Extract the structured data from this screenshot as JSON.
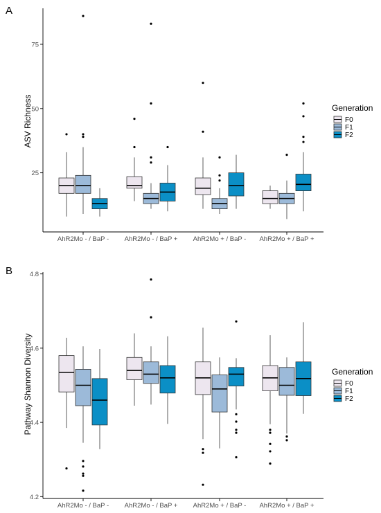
{
  "chart_data": [
    {
      "type": "boxplot",
      "panel_label": "A",
      "title": "",
      "xlabel": "",
      "ylabel": "ASV Richness",
      "ylim": [
        2,
        89
      ],
      "yticks": [
        25,
        50,
        75
      ],
      "ytick_labels": [
        "25",
        "50",
        "75"
      ],
      "categories": [
        "AhR2Mo - / BaP -",
        "AhR2Mo - / BaP +",
        "AhR2Mo + / BaP -",
        "AhR2Mo + / BaP +"
      ],
      "legend": {
        "title": "Generation",
        "entries": [
          "F0",
          "F1",
          "F2"
        ],
        "position": "right"
      },
      "colors": {
        "F0": "#ede6ef",
        "F1": "#9cbad9",
        "F2": "#0b8fc6"
      },
      "series": [
        {
          "name": "F0",
          "boxes": [
            {
              "whisker_low": 8,
              "q1": 17,
              "median": 20,
              "q3": 23,
              "whisker_high": 33,
              "outliers": [
                40
              ]
            },
            {
              "whisker_low": 14,
              "q1": 19,
              "median": 20,
              "q3": 23.5,
              "whisker_high": 31,
              "outliers": [
                35,
                46
              ]
            },
            {
              "whisker_low": 11,
              "q1": 16.5,
              "median": 19,
              "q3": 23,
              "whisker_high": 31,
              "outliers": [
                41,
                60
              ]
            },
            {
              "whisker_low": 11,
              "q1": 13,
              "median": 15,
              "q3": 18,
              "whisker_high": 20,
              "outliers": []
            }
          ]
        },
        {
          "name": "F1",
          "boxes": [
            {
              "whisker_low": 9,
              "q1": 17,
              "median": 20,
              "q3": 24,
              "whisker_high": 35,
              "outliers": [
                39,
                40,
                86
              ]
            },
            {
              "whisker_low": 11,
              "q1": 13,
              "median": 15,
              "q3": 17,
              "whisker_high": 21,
              "outliers": [
                29,
                31,
                52,
                83
              ]
            },
            {
              "whisker_low": 9,
              "q1": 11,
              "median": 13,
              "q3": 15,
              "whisker_high": 19,
              "outliers": [
                22,
                24,
                31
              ]
            },
            {
              "whisker_low": 7,
              "q1": 13,
              "median": 15,
              "q3": 17,
              "whisker_high": 22,
              "outliers": [
                32
              ]
            }
          ]
        },
        {
          "name": "F2",
          "boxes": [
            {
              "whisker_low": 8,
              "q1": 11,
              "median": 13,
              "q3": 15,
              "whisker_high": 19,
              "outliers": []
            },
            {
              "whisker_low": 10,
              "q1": 14,
              "median": 17.5,
              "q3": 21,
              "whisker_high": 28,
              "outliers": [
                35
              ]
            },
            {
              "whisker_low": 11,
              "q1": 16,
              "median": 20,
              "q3": 25,
              "whisker_high": 32,
              "outliers": []
            },
            {
              "whisker_low": 10,
              "q1": 18,
              "median": 20.5,
              "q3": 24.5,
              "whisker_high": 33,
              "outliers": [
                37,
                39,
                47,
                52
              ]
            }
          ]
        }
      ]
    },
    {
      "type": "boxplot",
      "panel_label": "B",
      "title": "",
      "xlabel": "",
      "ylabel": "Pathway Shannon Diversity",
      "ylim": [
        4.195,
        4.805
      ],
      "yticks": [
        4.2,
        4.4,
        4.6,
        4.8
      ],
      "ytick_labels": [
        "4.2",
        "4.4",
        "4.6",
        "4.8"
      ],
      "categories": [
        "AhR2Mo - / BaP -",
        "AhR2Mo - / BaP +",
        "AhR2Mo + / BaP -",
        "AhR2Mo + / BaP +"
      ],
      "legend": {
        "title": "Generation",
        "entries": [
          "F0",
          "F1",
          "F2"
        ],
        "position": "right"
      },
      "colors": {
        "F0": "#ede6ef",
        "F1": "#9cbad9",
        "F2": "#0b8fc6"
      },
      "series": [
        {
          "name": "F0",
          "boxes": [
            {
              "whisker_low": 4.385,
              "q1": 4.482,
              "median": 4.535,
              "q3": 4.58,
              "whisker_high": 4.628,
              "outliers": [
                4.276
              ]
            },
            {
              "whisker_low": 4.445,
              "q1": 4.515,
              "median": 4.54,
              "q3": 4.575,
              "whisker_high": 4.64,
              "outliers": []
            },
            {
              "whisker_low": 4.355,
              "q1": 4.475,
              "median": 4.52,
              "q3": 4.563,
              "whisker_high": 4.655,
              "outliers": [
                4.232,
                4.318,
                4.328
              ]
            },
            {
              "whisker_low": 4.395,
              "q1": 4.485,
              "median": 4.52,
              "q3": 4.553,
              "whisker_high": 4.635,
              "outliers": [
                4.289,
                4.322,
                4.342,
                4.372,
                4.38
              ]
            }
          ]
        },
        {
          "name": "F1",
          "boxes": [
            {
              "whisker_low": 4.345,
              "q1": 4.445,
              "median": 4.5,
              "q3": 4.543,
              "whisker_high": 4.605,
              "outliers": [
                4.216,
                4.256,
                4.262,
                4.281,
                4.296
              ]
            },
            {
              "whisker_low": 4.448,
              "q1": 4.505,
              "median": 4.53,
              "q3": 4.563,
              "whisker_high": 4.605,
              "outliers": [
                4.683,
                4.785
              ]
            },
            {
              "whisker_low": 4.33,
              "q1": 4.428,
              "median": 4.49,
              "q3": 4.528,
              "whisker_high": 4.575,
              "outliers": []
            },
            {
              "whisker_low": 4.37,
              "q1": 4.473,
              "median": 4.5,
              "q3": 4.548,
              "whisker_high": 4.575,
              "outliers": [
                4.352,
                4.362
              ]
            }
          ]
        },
        {
          "name": "F2",
          "boxes": [
            {
              "whisker_low": 4.328,
              "q1": 4.393,
              "median": 4.46,
              "q3": 4.518,
              "whisker_high": 4.598,
              "outliers": []
            },
            {
              "whisker_low": 4.396,
              "q1": 4.479,
              "median": 4.52,
              "q3": 4.553,
              "whisker_high": 4.632,
              "outliers": []
            },
            {
              "whisker_low": 4.435,
              "q1": 4.498,
              "median": 4.53,
              "q3": 4.548,
              "whisker_high": 4.573,
              "outliers": [
                4.306,
                4.372,
                4.38,
                4.402,
                4.422,
                4.672
              ]
            },
            {
              "whisker_low": 4.423,
              "q1": 4.472,
              "median": 4.518,
              "q3": 4.563,
              "whisker_high": 4.67,
              "outliers": []
            }
          ]
        }
      ]
    }
  ]
}
